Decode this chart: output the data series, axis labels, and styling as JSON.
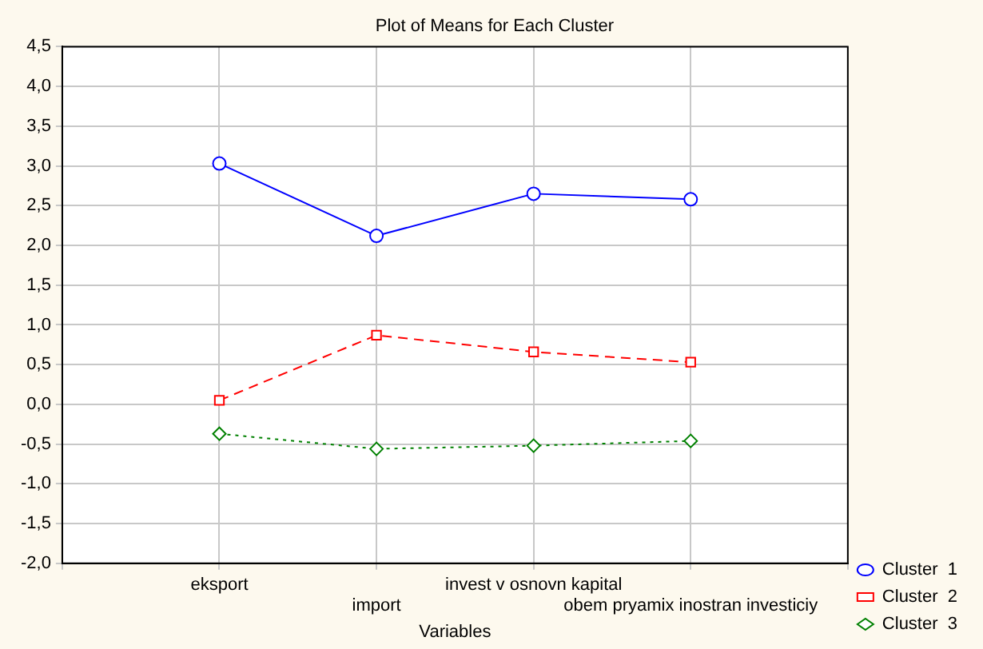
{
  "chart_data": {
    "type": "line",
    "title": "Plot of Means for Each Cluster",
    "xlabel": "Variables",
    "categories": [
      null,
      "eksport",
      "import",
      "invest v osnovn kapital",
      "obem pryamix inostran investiciy",
      null
    ],
    "series": [
      {
        "name": "Cluster  1",
        "color": "#0000ff",
        "marker": "circle",
        "line_style": "solid",
        "values": [
          null,
          3.03,
          2.12,
          2.65,
          2.58,
          null
        ]
      },
      {
        "name": "Cluster  2",
        "color": "#ff0000",
        "marker": "square",
        "line_style": "dashed",
        "values": [
          null,
          0.05,
          0.87,
          0.66,
          0.53,
          null
        ]
      },
      {
        "name": "Cluster  3",
        "color": "#008000",
        "marker": "diamond",
        "line_style": "dotted",
        "values": [
          null,
          -0.37,
          -0.56,
          -0.52,
          -0.46,
          null
        ]
      }
    ],
    "ylim": [
      -2,
      4.5
    ],
    "yticks": [
      {
        "value": -2,
        "label": "-2,0"
      },
      {
        "value": -1.5,
        "label": "-1,5"
      },
      {
        "value": -1,
        "label": "-1,0"
      },
      {
        "value": -0.5,
        "label": "-0,5"
      },
      {
        "value": 0,
        "label": "0,0"
      },
      {
        "value": 0.5,
        "label": "0,5"
      },
      {
        "value": 1,
        "label": "1,0"
      },
      {
        "value": 1.5,
        "label": "1,5"
      },
      {
        "value": 2,
        "label": "2,0"
      },
      {
        "value": 2.5,
        "label": "2,5"
      },
      {
        "value": 3,
        "label": "3,0"
      },
      {
        "value": 3.5,
        "label": "3,5"
      },
      {
        "value": 4,
        "label": "4,0"
      },
      {
        "value": 4.5,
        "label": "4,5"
      }
    ],
    "grid": true,
    "legend": "bottom right"
  }
}
